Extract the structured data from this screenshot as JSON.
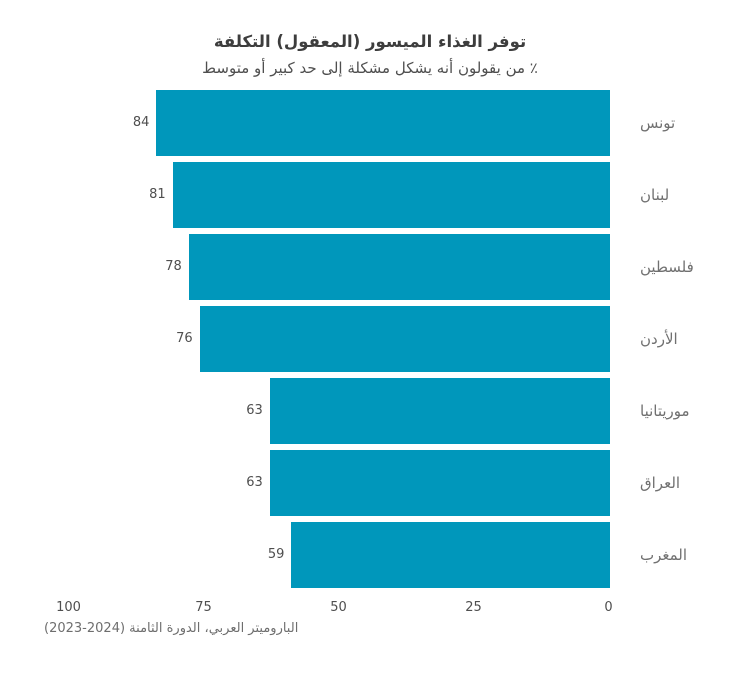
{
  "header": {
    "title": "توفر الغذاء الميسور (المعقول) التكلفة",
    "subtitle": "٪ من يقولون أنه يشكل مشكلة إلى حد كبير أو متوسط"
  },
  "chart_data": {
    "type": "bar",
    "orientation": "horizontal",
    "rtl": true,
    "title": "توفر الغذاء الميسور (المعقول) التكلفة",
    "subtitle": "٪ من يقولون أنه يشكل مشكلة إلى حد كبير أو متوسط",
    "categories": [
      "تونس",
      "لبنان",
      "فلسطين",
      "الأردن",
      "موريتانيا",
      "العراق",
      "المغرب"
    ],
    "values": [
      84,
      81,
      78,
      76,
      63,
      63,
      59
    ],
    "value_labels_shown": true,
    "x_ticks": [
      100,
      75,
      50,
      25,
      0
    ],
    "xlim": [
      0,
      100
    ],
    "grid": false,
    "legend": false,
    "bar_color": "#0097bb"
  },
  "footer": {
    "source": "الباروميتر العربي، الدورة الثامنة (2024-2023)"
  },
  "theme": {
    "background": "#ffffff",
    "bar_color": "#0097bb",
    "title_color": "#3d3d3d",
    "subtitle_color": "#4f4f4f",
    "value_label_color": "#4f4f4f",
    "category_label_color": "#707070",
    "tick_label_color": "#4f4f4f",
    "source_color": "#6e6e6e"
  }
}
